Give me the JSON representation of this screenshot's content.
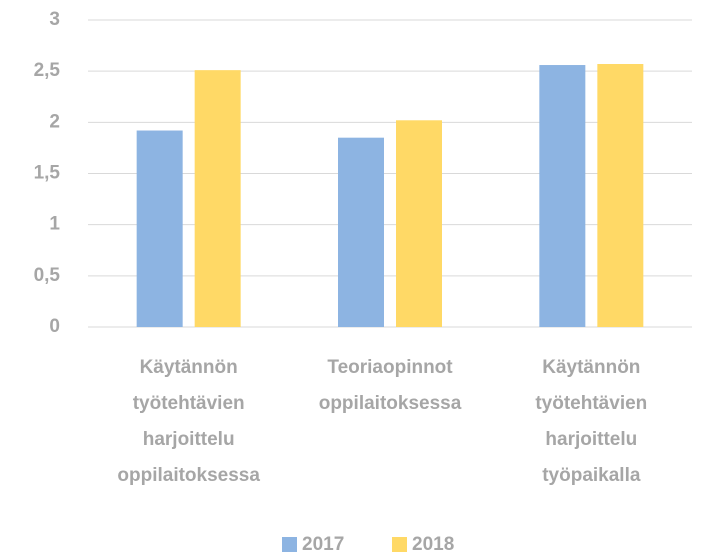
{
  "chart_data": {
    "type": "bar",
    "categories": [
      [
        "Käytännön",
        "työtehtävien",
        "harjoittelu",
        "oppilaitoksessa"
      ],
      [
        "Teoriaopinnot",
        "oppilaitoksessa"
      ],
      [
        "Käytännön",
        "työtehtävien",
        "harjoittelu",
        "työpaikalla"
      ]
    ],
    "series": [
      {
        "name": "2017",
        "color": "#8db4e2",
        "values": [
          1.92,
          1.85,
          2.56
        ]
      },
      {
        "name": "2018",
        "color": "#ffd966",
        "values": [
          2.51,
          2.02,
          2.57
        ]
      }
    ],
    "ylim": [
      0,
      3
    ],
    "yticks": [
      0,
      {
        "value": 0.5,
        "label": "0,5"
      },
      1,
      {
        "value": 1.5,
        "label": "1,5"
      },
      2,
      {
        "value": 2.5,
        "label": "2,5"
      },
      3
    ],
    "grid": true,
    "legend": "bottom"
  }
}
